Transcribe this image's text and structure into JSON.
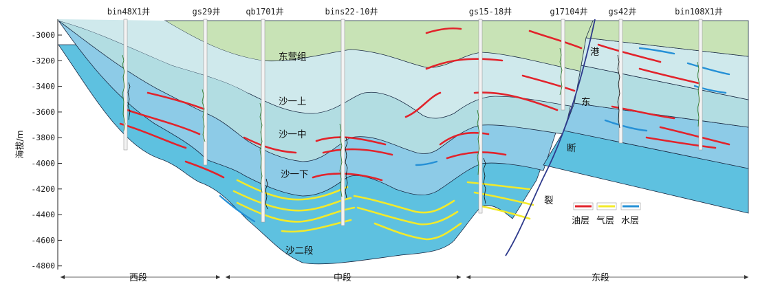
{
  "y_axis": {
    "label": "海拔/m",
    "ticks": [
      "-3000",
      "-3200",
      "-3400",
      "-3600",
      "-3800",
      "-4000",
      "-4200",
      "-4400",
      "-4600",
      "-4800"
    ]
  },
  "wells": [
    {
      "id": "w1",
      "name": "bin48X1井"
    },
    {
      "id": "w2",
      "name": "gs29井"
    },
    {
      "id": "w3",
      "name": "qb1701井"
    },
    {
      "id": "w4",
      "name": "bins22-10井"
    },
    {
      "id": "w5",
      "name": "gs15-18井"
    },
    {
      "id": "w6",
      "name": "g17104井"
    },
    {
      "id": "w7",
      "name": "gs42井"
    },
    {
      "id": "w8",
      "name": "bin108X1井"
    }
  ],
  "formations": {
    "dongying": "东营组",
    "sha1_upper": "沙一上",
    "sha1_middle": "沙一中",
    "sha1_lower": "沙一下",
    "sha2": "沙二段"
  },
  "fault_label": [
    "港",
    "东",
    "断",
    "裂"
  ],
  "segments": {
    "west": "西段",
    "middle": "中段",
    "east": "东段"
  },
  "legend": {
    "oil": "油层",
    "gas": "气层",
    "water": "水层"
  },
  "colors": {
    "dongying": "#c8e3b6",
    "sha1_upper": "#cfe9ec",
    "sha1_middle": "#b2dde2",
    "sha1_lower_upper": "#9fd0e6",
    "sha1_lower": "#8dcbe7",
    "sha2": "#5ec1e0",
    "oil": "#e2232b",
    "gas": "#f2ea2a",
    "water": "#2590d6",
    "fault": "#2e3a8c"
  }
}
